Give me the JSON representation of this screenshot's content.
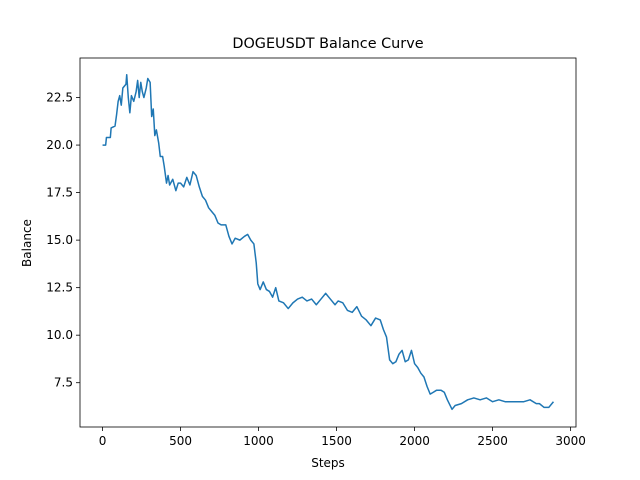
{
  "chart_data": {
    "type": "line",
    "title": "DOGEUSDT Balance Curve",
    "x_label": "Steps",
    "y_label": "Balance",
    "x": [
      0,
      20,
      25,
      50,
      55,
      80,
      90,
      100,
      110,
      120,
      130,
      150,
      155,
      165,
      175,
      185,
      200,
      215,
      225,
      235,
      245,
      255,
      265,
      280,
      290,
      305,
      315,
      325,
      335,
      345,
      360,
      370,
      385,
      395,
      410,
      420,
      430,
      450,
      470,
      485,
      500,
      520,
      540,
      560,
      580,
      600,
      620,
      640,
      660,
      680,
      700,
      720,
      740,
      760,
      790,
      810,
      830,
      850,
      880,
      910,
      930,
      950,
      970,
      985,
      995,
      1010,
      1030,
      1050,
      1070,
      1090,
      1110,
      1130,
      1160,
      1190,
      1220,
      1250,
      1280,
      1310,
      1340,
      1370,
      1400,
      1430,
      1460,
      1490,
      1510,
      1540,
      1570,
      1600,
      1630,
      1660,
      1690,
      1720,
      1750,
      1780,
      1800,
      1820,
      1840,
      1860,
      1880,
      1900,
      1920,
      1940,
      1960,
      1980,
      2000,
      2020,
      2040,
      2060,
      2080,
      2100,
      2120,
      2140,
      2170,
      2190,
      2210,
      2240,
      2260,
      2300,
      2340,
      2380,
      2420,
      2460,
      2500,
      2540,
      2580,
      2620,
      2660,
      2700,
      2740,
      2780,
      2800,
      2830,
      2860,
      2880,
      2890
    ],
    "series": [
      {
        "name": "Balance",
        "color": "#1f77b4",
        "values": [
          20.0,
          20.0,
          20.4,
          20.4,
          20.9,
          21.0,
          21.6,
          22.3,
          22.6,
          22.1,
          23.0,
          23.2,
          23.7,
          22.5,
          21.7,
          22.6,
          22.3,
          22.8,
          23.4,
          22.5,
          23.3,
          22.8,
          22.5,
          23.0,
          23.5,
          23.3,
          21.5,
          21.9,
          20.5,
          20.8,
          20.1,
          19.4,
          19.4,
          18.9,
          18.0,
          18.4,
          17.9,
          18.2,
          17.6,
          18.0,
          18.0,
          17.8,
          18.3,
          17.9,
          18.6,
          18.4,
          17.8,
          17.3,
          17.1,
          16.7,
          16.5,
          16.3,
          15.9,
          15.8,
          15.8,
          15.2,
          14.8,
          15.1,
          15.0,
          15.2,
          15.3,
          15.0,
          14.8,
          13.8,
          12.7,
          12.4,
          12.8,
          12.4,
          12.3,
          12.0,
          12.5,
          11.8,
          11.7,
          11.4,
          11.7,
          11.9,
          12.0,
          11.8,
          11.9,
          11.6,
          11.9,
          12.2,
          11.9,
          11.6,
          11.8,
          11.7,
          11.3,
          11.2,
          11.5,
          11.0,
          10.8,
          10.5,
          10.9,
          10.8,
          10.3,
          9.9,
          8.7,
          8.5,
          8.6,
          9.0,
          9.2,
          8.6,
          8.7,
          9.2,
          8.5,
          8.3,
          8.0,
          7.8,
          7.3,
          6.9,
          7.0,
          7.1,
          7.1,
          7.0,
          6.6,
          6.1,
          6.3,
          6.4,
          6.6,
          6.7,
          6.6,
          6.7,
          6.5,
          6.6,
          6.5,
          6.5,
          6.5,
          6.5,
          6.6,
          6.4,
          6.4,
          6.2,
          6.2,
          6.4,
          6.5
        ]
      }
    ],
    "xlim": [
      -144.5,
      3034.5
    ],
    "xticks": [
      0,
      500,
      1000,
      1500,
      2000,
      2500,
      3000
    ],
    "ylim": [
      5.17,
      24.58
    ],
    "yticks": [
      7.5,
      {
        "value": 10,
        "label": "10.0"
      },
      12.5,
      {
        "value": 15,
        "label": "15.0"
      },
      17.5,
      {
        "value": 20,
        "label": "20.0"
      },
      22.5
    ]
  }
}
